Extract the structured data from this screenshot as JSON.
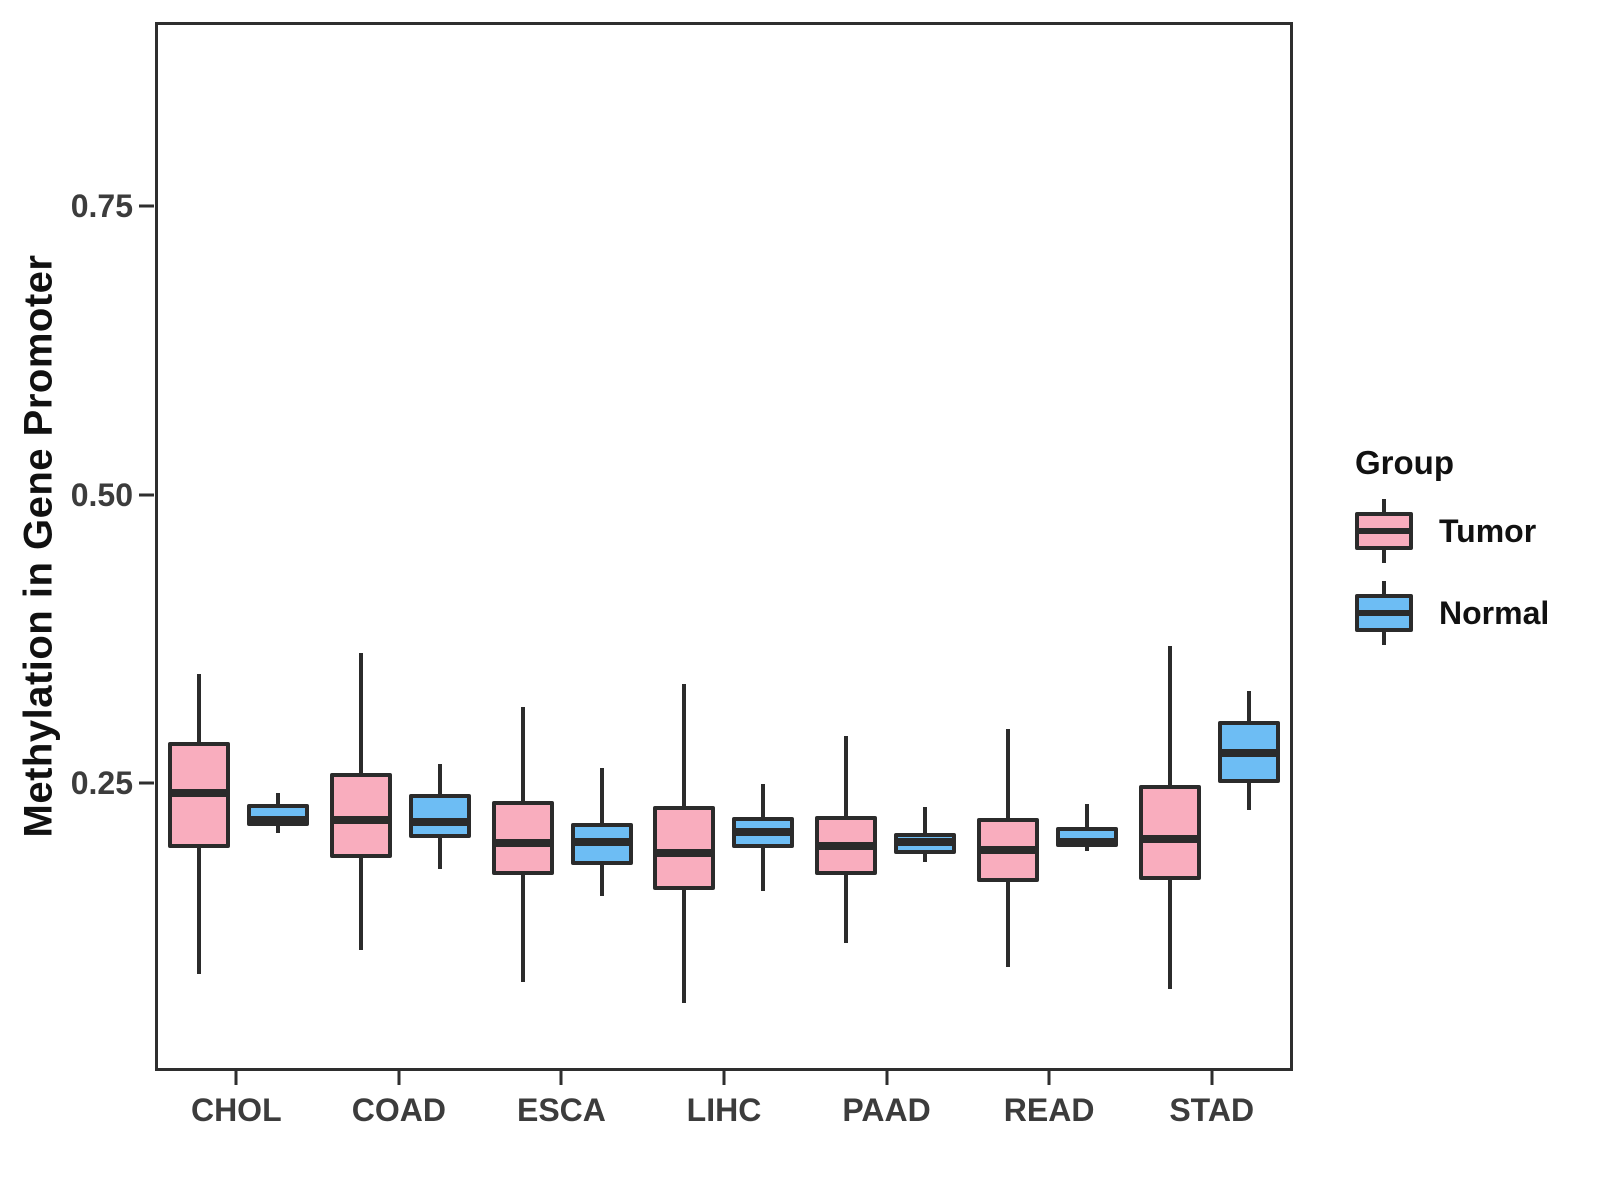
{
  "chart_data": {
    "type": "boxplot",
    "title": "",
    "xlabel": "",
    "ylabel": "Methylation in Gene Promoter",
    "categories": [
      "CHOL",
      "COAD",
      "ESCA",
      "LIHC",
      "PAAD",
      "READ",
      "STAD"
    ],
    "ylim": [
      0,
      0.91
    ],
    "yticks": [
      {
        "value": 0.25,
        "label": "0.25"
      },
      {
        "value": 0.5,
        "label": "0.50"
      },
      {
        "value": 0.75,
        "label": "0.75"
      }
    ],
    "grid": false,
    "panel_border": true,
    "legend": {
      "title": "Group",
      "position": "right",
      "entries": [
        {
          "label": "Tumor",
          "color": "#F9ADBE"
        },
        {
          "label": "Normal",
          "color": "#6DBDF4"
        }
      ]
    },
    "colors": {
      "tumor_fill": "#F9ADBE",
      "normal_fill": "#6DBDF4",
      "outline": "#2b2b2b",
      "axis_text": "#3c3c3c",
      "background": "#ffffff"
    },
    "series": [
      {
        "name": "Tumor",
        "fill": "#F9ADBE",
        "boxes": [
          {
            "category": "CHOL",
            "whisker_low": 0.082,
            "q1": 0.192,
            "median": 0.24,
            "q3": 0.284,
            "whisker_high": 0.344
          },
          {
            "category": "COAD",
            "whisker_low": 0.103,
            "q1": 0.183,
            "median": 0.216,
            "q3": 0.257,
            "whisker_high": 0.362
          },
          {
            "category": "ESCA",
            "whisker_low": 0.075,
            "q1": 0.168,
            "median": 0.196,
            "q3": 0.233,
            "whisker_high": 0.315
          },
          {
            "category": "LIHC",
            "whisker_low": 0.057,
            "q1": 0.155,
            "median": 0.188,
            "q3": 0.229,
            "whisker_high": 0.335
          },
          {
            "category": "PAAD",
            "whisker_low": 0.109,
            "q1": 0.168,
            "median": 0.194,
            "q3": 0.22,
            "whisker_high": 0.29
          },
          {
            "category": "READ",
            "whisker_low": 0.088,
            "q1": 0.162,
            "median": 0.19,
            "q3": 0.218,
            "whisker_high": 0.296
          },
          {
            "category": "STAD",
            "whisker_low": 0.069,
            "q1": 0.164,
            "median": 0.2,
            "q3": 0.247,
            "whisker_high": 0.368
          }
        ]
      },
      {
        "name": "Normal",
        "fill": "#6DBDF4",
        "boxes": [
          {
            "category": "CHOL",
            "whisker_low": 0.205,
            "q1": 0.211,
            "median": 0.216,
            "q3": 0.23,
            "whisker_high": 0.24
          },
          {
            "category": "COAD",
            "whisker_low": 0.174,
            "q1": 0.201,
            "median": 0.215,
            "q3": 0.239,
            "whisker_high": 0.265
          },
          {
            "category": "ESCA",
            "whisker_low": 0.15,
            "q1": 0.177,
            "median": 0.197,
            "q3": 0.214,
            "whisker_high": 0.262
          },
          {
            "category": "LIHC",
            "whisker_low": 0.154,
            "q1": 0.192,
            "median": 0.206,
            "q3": 0.219,
            "whisker_high": 0.248
          },
          {
            "category": "PAAD",
            "whisker_low": 0.18,
            "q1": 0.187,
            "median": 0.197,
            "q3": 0.205,
            "whisker_high": 0.228
          },
          {
            "category": "READ",
            "whisker_low": 0.189,
            "q1": 0.193,
            "median": 0.197,
            "q3": 0.21,
            "whisker_high": 0.23
          },
          {
            "category": "STAD",
            "whisker_low": 0.225,
            "q1": 0.249,
            "median": 0.275,
            "q3": 0.303,
            "whisker_high": 0.329
          }
        ]
      }
    ]
  }
}
